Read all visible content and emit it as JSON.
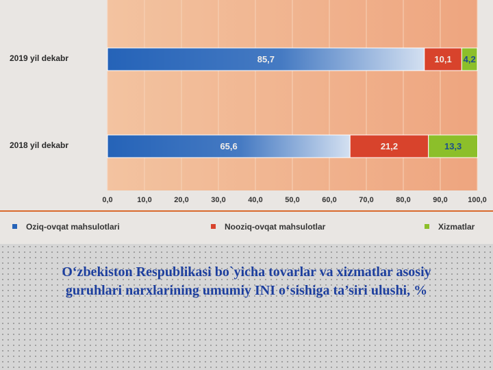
{
  "chart_data": {
    "type": "stacked-bar-horizontal",
    "title": "O‘zbekiston Respublikasi bo`yicha tovarlar va xizmatlar asosiy guruhlari narxlarining umumiy INI o‘sishiga ta’siri ulushi, %",
    "categories": [
      "2019 yil dekabr",
      "2018 yil dekabr"
    ],
    "series": [
      {
        "name": "Oziq-ovqat mahsulotlari",
        "color": "#2563b8",
        "values": [
          85.7,
          65.6
        ],
        "value_labels": [
          "85,7",
          "65,6"
        ]
      },
      {
        "name": "Nooziq-ovqat mahsulotlar",
        "color": "#d8432c",
        "values": [
          10.1,
          21.2
        ],
        "value_labels": [
          "10,1",
          "21,2"
        ]
      },
      {
        "name": "Xizmatlar",
        "color": "#8cbf2a",
        "values": [
          4.2,
          13.3
        ],
        "value_labels": [
          "4,2",
          "13,3"
        ]
      }
    ],
    "xlim": [
      0,
      100
    ],
    "xticks": [
      {
        "value": 0,
        "label": "0,0"
      },
      {
        "value": 10,
        "label": "10,0"
      },
      {
        "value": 20,
        "label": "20,0"
      },
      {
        "value": 30,
        "label": "30,0"
      },
      {
        "value": 40,
        "label": "40,0"
      },
      {
        "value": 50,
        "label": "50,0"
      },
      {
        "value": 60,
        "label": "60,0"
      },
      {
        "value": 70,
        "label": "70,0"
      },
      {
        "value": 80,
        "label": "80,0"
      },
      {
        "value": 90,
        "label": "90,0"
      },
      {
        "value": 100,
        "label": "100,0"
      }
    ],
    "grid": true,
    "legend": "bottom"
  }
}
